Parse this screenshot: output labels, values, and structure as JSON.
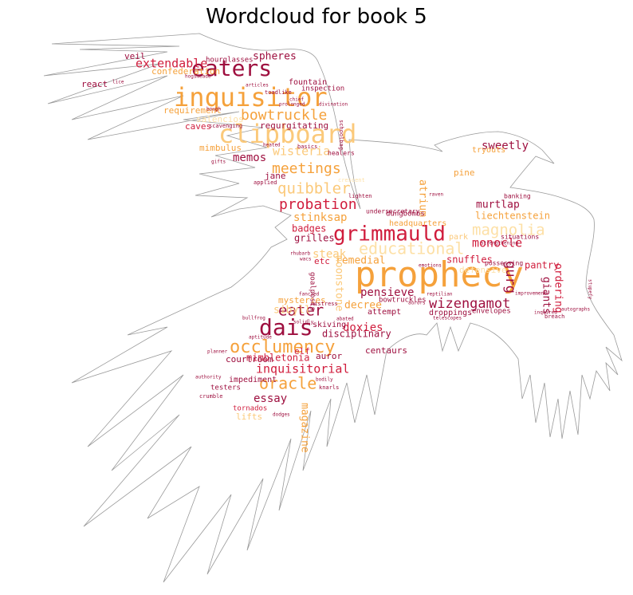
{
  "title": "Wordcloud for book 5",
  "colors": {
    "dark_red": "#9e0f3f",
    "red": "#d01c3c",
    "orange": "#f5a13b",
    "light_orange": "#fbc97a",
    "pale": "#fde0a6",
    "outline": "#9a9a9a"
  },
  "words": [
    {
      "text": "prophecy",
      "c": "orange"
    },
    {
      "text": "inquisitor",
      "c": "orange"
    },
    {
      "text": "clipboard",
      "c": "light_orange"
    },
    {
      "text": "eaters",
      "c": "dark_red"
    },
    {
      "text": "grimmauld",
      "c": "red"
    },
    {
      "text": "dais",
      "c": "dark_red"
    },
    {
      "text": "occlumency",
      "c": "orange"
    },
    {
      "text": "educational",
      "c": "pale"
    },
    {
      "text": "magnolia",
      "c": "pale"
    },
    {
      "text": "wizengamot",
      "c": "dark_red"
    },
    {
      "text": "quibbler",
      "c": "light_orange"
    },
    {
      "text": "meetings",
      "c": "orange"
    },
    {
      "text": "probation",
      "c": "red"
    },
    {
      "text": "oracle",
      "c": "orange"
    },
    {
      "text": "eater",
      "c": "dark_red"
    },
    {
      "text": "bowtruckle",
      "c": "orange"
    },
    {
      "text": "extendable",
      "c": "red"
    },
    {
      "text": "gurg",
      "c": "dark_red"
    },
    {
      "text": "wisteria",
      "c": "light_orange"
    },
    {
      "text": "inquisitorial",
      "c": "red"
    },
    {
      "text": "monocle",
      "c": "red"
    },
    {
      "text": "sweetly",
      "c": "dark_red"
    },
    {
      "text": "stinksap",
      "c": "orange"
    },
    {
      "text": "memos",
      "c": "dark_red"
    },
    {
      "text": "pensieve",
      "c": "dark_red"
    },
    {
      "text": "doxies",
      "c": "red"
    },
    {
      "text": "essay",
      "c": "dark_red"
    },
    {
      "text": "steak",
      "c": "light_orange"
    },
    {
      "text": "remedial",
      "c": "orange"
    },
    {
      "text": "murtlap",
      "c": "dark_red"
    },
    {
      "text": "spheres",
      "c": "dark_red"
    },
    {
      "text": "atrium",
      "c": "orange"
    },
    {
      "text": "liechtenstein",
      "c": "orange"
    },
    {
      "text": "snuffles",
      "c": "red"
    },
    {
      "text": "moonstone",
      "c": "light_orange"
    },
    {
      "text": "sibyll",
      "c": "light_orange"
    },
    {
      "text": "decree",
      "c": "orange"
    },
    {
      "text": "badges",
      "c": "red"
    },
    {
      "text": "grilles",
      "c": "dark_red"
    },
    {
      "text": "mimbletonia",
      "c": "red"
    },
    {
      "text": "magazine",
      "c": "orange"
    },
    {
      "text": "giants",
      "c": "dark_red"
    },
    {
      "text": "ordering",
      "c": "red"
    },
    {
      "text": "disciplinary",
      "c": "dark_red"
    },
    {
      "text": "mysteries",
      "c": "orange"
    },
    {
      "text": "pantry",
      "c": "red"
    },
    {
      "text": "jane",
      "c": "dark_red"
    },
    {
      "text": "pine",
      "c": "orange"
    },
    {
      "text": "regurgitating",
      "c": "dark_red"
    },
    {
      "text": "defensive",
      "c": "pale"
    },
    {
      "text": "courtroom",
      "c": "dark_red"
    },
    {
      "text": "centaurs",
      "c": "dark_red"
    },
    {
      "text": "elf",
      "c": "red"
    },
    {
      "text": "veil",
      "c": "dark_red"
    },
    {
      "text": "react",
      "c": "dark_red"
    },
    {
      "text": "confederation",
      "c": "orange"
    },
    {
      "text": "requirement",
      "c": "orange"
    },
    {
      "text": "caves",
      "c": "red"
    },
    {
      "text": "mimbulus",
      "c": "orange"
    },
    {
      "text": "fountain",
      "c": "dark_red"
    },
    {
      "text": "hourglasses",
      "c": "dark_red"
    },
    {
      "text": "inspection",
      "c": "dark_red"
    },
    {
      "text": "tryouts",
      "c": "orange"
    },
    {
      "text": "dungbombs",
      "c": "dark_red"
    },
    {
      "text": "headquarters",
      "c": "orange"
    },
    {
      "text": "park",
      "c": "light_orange"
    },
    {
      "text": "bowtruckles",
      "c": "dark_red"
    },
    {
      "text": "attempt",
      "c": "dark_red"
    },
    {
      "text": "droppings",
      "c": "dark_red"
    },
    {
      "text": "envelopes",
      "c": "dark_red"
    },
    {
      "text": "skiving",
      "c": "dark_red"
    },
    {
      "text": "auror",
      "c": "dark_red"
    },
    {
      "text": "impediment",
      "c": "dark_red"
    },
    {
      "text": "tornados",
      "c": "red"
    },
    {
      "text": "lifts",
      "c": "light_orange"
    },
    {
      "text": "testers",
      "c": "dark_red"
    },
    {
      "text": "etc",
      "c": "red"
    },
    {
      "text": "goalposts",
      "c": "dark_red"
    },
    {
      "text": "situations",
      "c": "dark_red"
    },
    {
      "text": "possessing",
      "c": "dark_red"
    },
    {
      "text": "banking",
      "c": "dark_red"
    },
    {
      "text": "undersecretary",
      "c": "dark_red"
    },
    {
      "text": "healers",
      "c": "dark_red"
    },
    {
      "text": "basics",
      "c": "dark_red"
    },
    {
      "text": "schoolbag",
      "c": "dark_red"
    },
    {
      "text": "toadlike",
      "c": "dark_red"
    },
    {
      "text": "scavenging",
      "c": "dark_red"
    },
    {
      "text": "salencios",
      "c": "pale"
    },
    {
      "text": "emotions",
      "c": "dark_red"
    },
    {
      "text": "fancied",
      "c": "dark_red"
    },
    {
      "text": "mistress",
      "c": "dark_red"
    },
    {
      "text": "applied",
      "c": "dark_red"
    },
    {
      "text": "crescent",
      "c": "pale"
    },
    {
      "text": "lighten",
      "c": "dark_red"
    },
    {
      "text": "raven",
      "c": "dark_red"
    },
    {
      "text": "stupefy",
      "c": "dark_red"
    },
    {
      "text": "breach",
      "c": "dark_red"
    },
    {
      "text": "authority",
      "c": "dark_red"
    },
    {
      "text": "crumble",
      "c": "dark_red"
    },
    {
      "text": "planner",
      "c": "dark_red"
    },
    {
      "text": "aptitude",
      "c": "dark_red"
    },
    {
      "text": "bodily",
      "c": "dark_red"
    },
    {
      "text": "knarls",
      "c": "dark_red"
    },
    {
      "text": "dodges",
      "c": "dark_red"
    },
    {
      "text": "telescopes",
      "c": "dark_red"
    },
    {
      "text": "improvement",
      "c": "dark_red"
    },
    {
      "text": "rhubarb",
      "c": "dark_red"
    },
    {
      "text": "lice",
      "c": "dark_red"
    },
    {
      "text": "hogsmeade",
      "c": "dark_red"
    },
    {
      "text": "articles",
      "c": "dark_red"
    },
    {
      "text": "prolonged",
      "c": "dark_red"
    },
    {
      "text": "strengthening",
      "c": "dark_red"
    },
    {
      "text": "abated",
      "c": "dark_red"
    },
    {
      "text": "solidly",
      "c": "dark_red"
    },
    {
      "text": "bullfrog",
      "c": "dark_red"
    },
    {
      "text": "wacs",
      "c": "dark_red"
    },
    {
      "text": "reptilian",
      "c": "dark_red"
    },
    {
      "text": "aurors",
      "c": "dark_red"
    },
    {
      "text": "divination",
      "c": "dark_red"
    },
    {
      "text": "inquired",
      "c": "dark_red"
    },
    {
      "text": "autographs",
      "c": "dark_red"
    },
    {
      "text": "gifts",
      "c": "dark_red"
    },
    {
      "text": "bough",
      "c": "dark_red"
    },
    {
      "text": "chief",
      "c": "dark_red"
    },
    {
      "text": "heated",
      "c": "dark_red"
    }
  ]
}
